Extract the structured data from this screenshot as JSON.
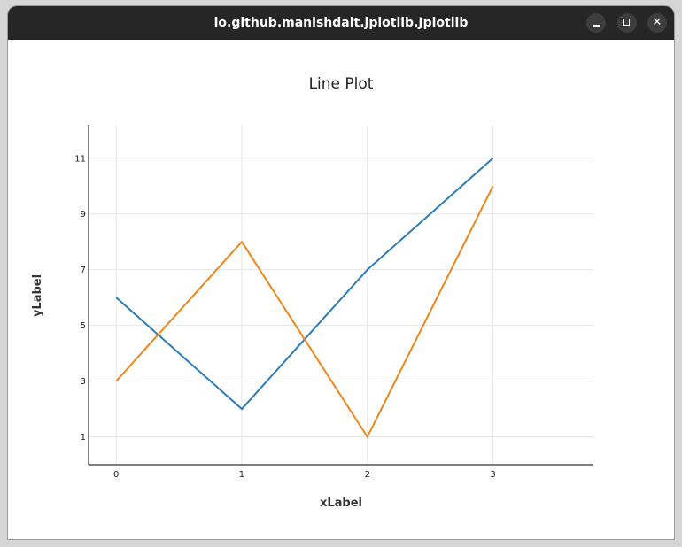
{
  "window": {
    "title": "io.github.manishdait.jplotlib.Jplotlib",
    "controls": {
      "minimize_icon": "minimize-icon",
      "maximize_icon": "maximize-icon",
      "close_icon": "close-icon"
    }
  },
  "chart_data": {
    "type": "line",
    "title": "Line Plot",
    "xlabel": "xLabel",
    "ylabel": "yLabel",
    "x": [
      0,
      1,
      2,
      3
    ],
    "x_ticks": [
      0,
      1,
      2,
      3
    ],
    "y_ticks": [
      1,
      3,
      5,
      7,
      9,
      11
    ],
    "xlim": [
      -0.22,
      3.8
    ],
    "ylim": [
      0,
      12.2
    ],
    "grid": true,
    "series": [
      {
        "values": [
          6,
          2,
          7,
          11
        ],
        "color": "#2b7bb9"
      },
      {
        "values": [
          3,
          8,
          1,
          10
        ],
        "color": "#f0861a"
      }
    ]
  }
}
